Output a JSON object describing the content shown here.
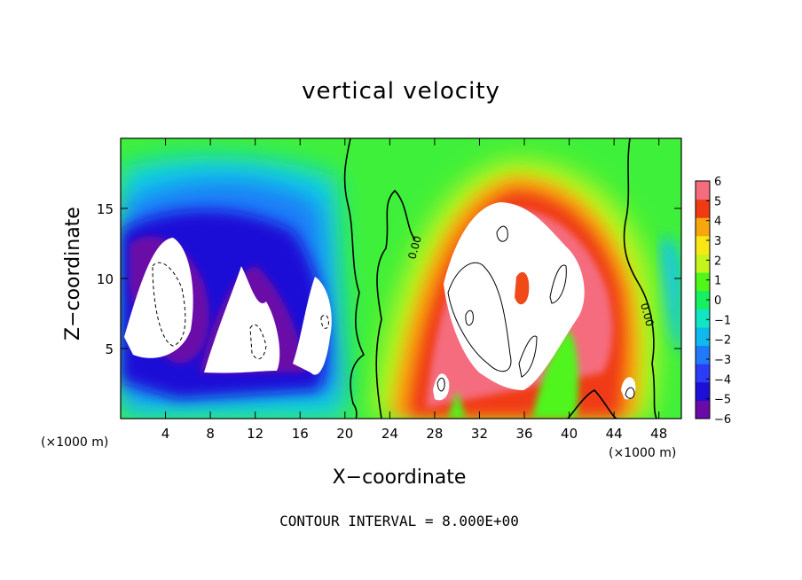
{
  "chart_data": {
    "type": "heatmap",
    "title": "vertical velocity",
    "xlabel": "X−coordinate",
    "ylabel": "Z−coordinate",
    "x_unit_label": "(×1000 m)",
    "footer": "CONTOUR INTERVAL = 8.000E+00",
    "xlim": [
      0,
      50
    ],
    "ylim": [
      0,
      20
    ],
    "x_ticks": [
      4,
      8,
      12,
      16,
      20,
      24,
      28,
      32,
      36,
      40,
      44,
      48
    ],
    "y_ticks": [
      5,
      10,
      15
    ],
    "colorbar": {
      "ticks": [
        6,
        5,
        4,
        3,
        2,
        1,
        0,
        -1,
        -2,
        -3,
        -4,
        -5,
        -6
      ],
      "tick_labels": [
        "6",
        "5",
        "4",
        "3",
        "2",
        "1",
        "0",
        "−1",
        "−2",
        "−3",
        "−4",
        "−5",
        "−6"
      ],
      "range": [
        -6,
        6
      ],
      "colors_low_to_high": [
        "#6a0aa8",
        "#1c0fd6",
        "#2b3cf4",
        "#1e7af8",
        "#0fb9ec",
        "#10e6c4",
        "#16f060",
        "#50f51a",
        "#c5f41c",
        "#f8e714",
        "#f7a60e",
        "#f03a13",
        "#f56c7e"
      ],
      "out_of_range_color": "#ffffff"
    },
    "contour_labels": [
      "0.00",
      "0.00"
    ],
    "features": [
      {
        "kind": "downdraft_core",
        "x": 3.5,
        "z": 8.5,
        "value": -6
      },
      {
        "kind": "downdraft_core",
        "x": 10.5,
        "z": 6.5,
        "value": -6
      },
      {
        "kind": "downdraft_core",
        "x": 16.5,
        "z": 6.5,
        "value": -6
      },
      {
        "kind": "updraft_core",
        "x": 33.5,
        "z": 9.0,
        "value": 6
      },
      {
        "kind": "updraft_core",
        "x": 45.5,
        "z": 2.0,
        "value": 6
      }
    ]
  }
}
